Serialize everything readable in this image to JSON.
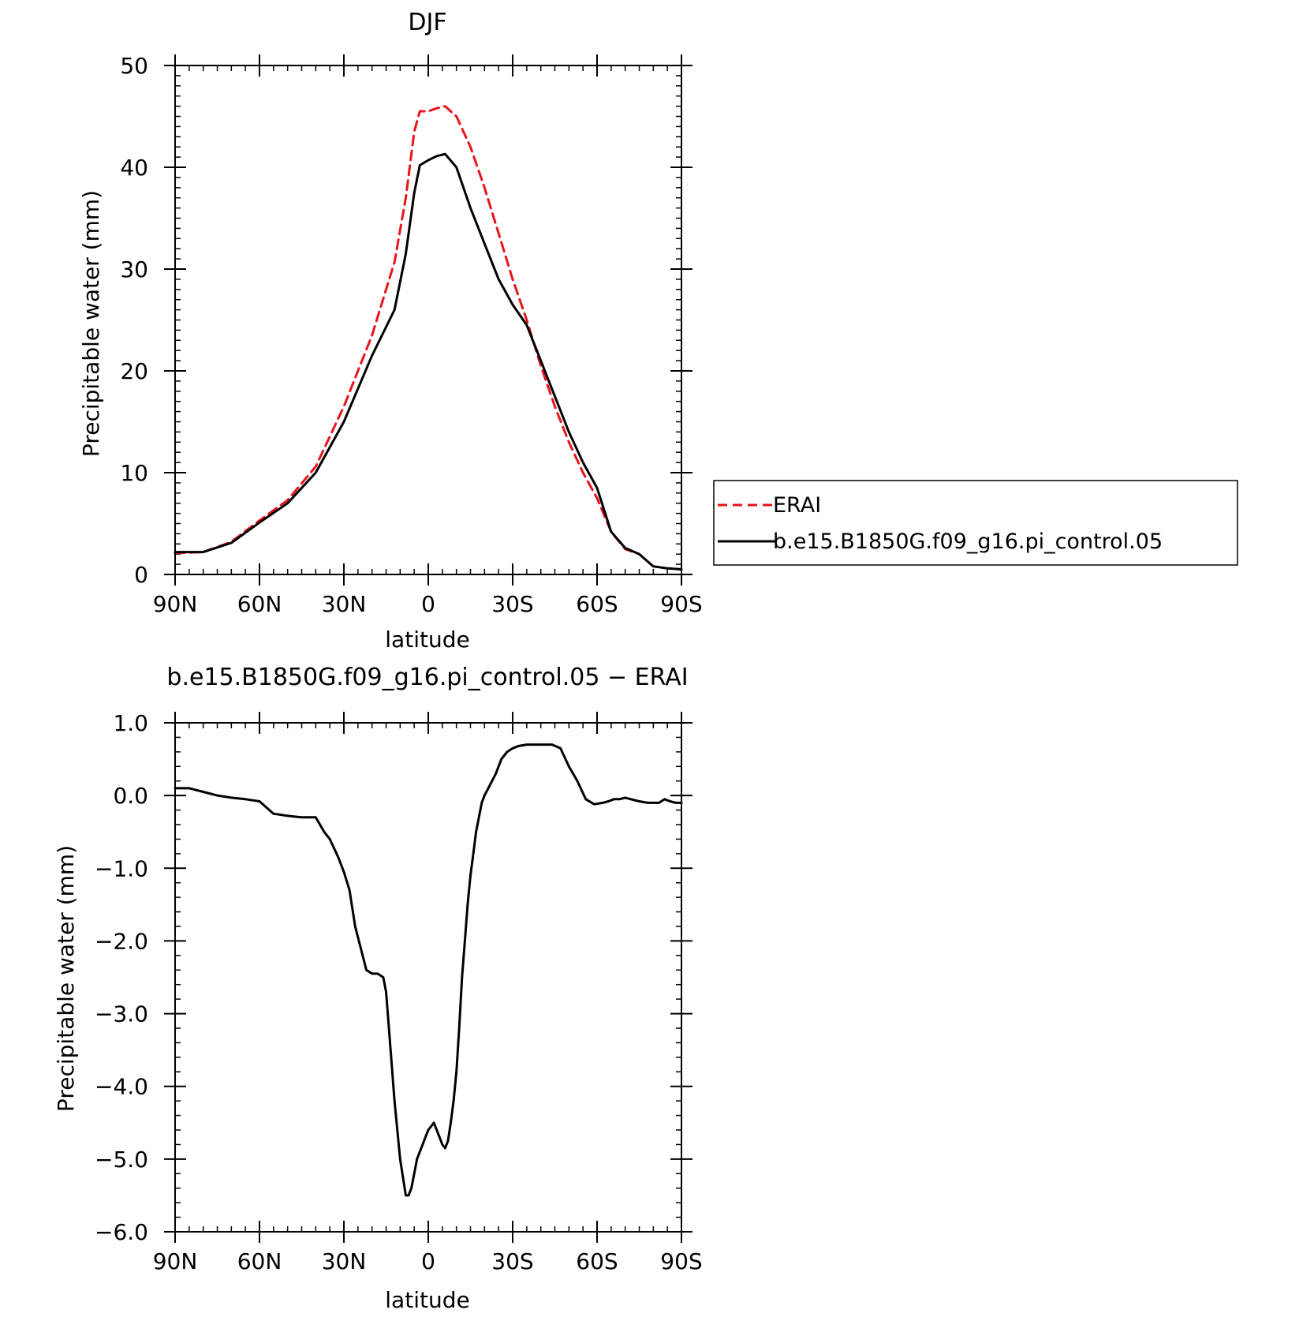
{
  "chart_data": [
    {
      "type": "line",
      "title": "DJF",
      "xlabel": "latitude",
      "ylabel": "Precipitable water (mm)",
      "xlim": [
        90,
        -90
      ],
      "ylim": [
        0,
        50
      ],
      "xticks": [
        {
          "value": 90,
          "label": "90N"
        },
        {
          "value": 60,
          "label": "60N"
        },
        {
          "value": 30,
          "label": "30N"
        },
        {
          "value": 0,
          "label": "0"
        },
        {
          "value": -30,
          "label": "30S"
        },
        {
          "value": -60,
          "label": "60S"
        },
        {
          "value": -90,
          "label": "90S"
        }
      ],
      "yticks": [
        {
          "value": 0,
          "label": "0"
        },
        {
          "value": 10,
          "label": "10"
        },
        {
          "value": 20,
          "label": "20"
        },
        {
          "value": 30,
          "label": "30"
        },
        {
          "value": 40,
          "label": "40"
        },
        {
          "value": 50,
          "label": "50"
        }
      ],
      "grid": false,
      "legend": "right",
      "series": [
        {
          "name": "ERAI",
          "color": "#e8141b",
          "dash": "dashed",
          "x": [
            90,
            80,
            70,
            60,
            50,
            40,
            30,
            20,
            12,
            8,
            5,
            3,
            0,
            -3,
            -6,
            -10,
            -15,
            -20,
            -25,
            -30,
            -35,
            -40,
            -45,
            -50,
            -55,
            -60,
            -65,
            -70,
            -75,
            -80,
            -85,
            -90
          ],
          "y": [
            2.1,
            2.2,
            3.2,
            5.3,
            7.3,
            10.6,
            16.5,
            23.5,
            30.7,
            37.0,
            43.5,
            45.5,
            45.5,
            45.8,
            46.0,
            45.0,
            42.0,
            38.0,
            33.5,
            29.0,
            25.0,
            20.5,
            16.5,
            13.0,
            10.0,
            7.5,
            4.2,
            2.5,
            2.0,
            0.8,
            0.6,
            0.5
          ]
        },
        {
          "name": "b.e15.B1850G.f09_g16.pi_control.05",
          "color": "#000000",
          "dash": "solid",
          "x": [
            90,
            80,
            70,
            60,
            50,
            40,
            30,
            20,
            12,
            8,
            5,
            3,
            0,
            -3,
            -6,
            -10,
            -15,
            -20,
            -25,
            -30,
            -35,
            -40,
            -45,
            -50,
            -55,
            -60,
            -65,
            -70,
            -75,
            -80,
            -85,
            -90
          ],
          "y": [
            2.2,
            2.2,
            3.1,
            5.1,
            7.0,
            10.0,
            15.0,
            21.5,
            26.0,
            31.5,
            37.5,
            40.2,
            40.7,
            41.1,
            41.3,
            40.0,
            36.0,
            32.5,
            29.0,
            26.5,
            24.5,
            21.0,
            17.5,
            14.0,
            11.0,
            8.5,
            4.2,
            2.6,
            2.0,
            0.8,
            0.6,
            0.5
          ]
        }
      ]
    },
    {
      "type": "line",
      "title": "b.e15.B1850G.f09_g16.pi_control.05 − ERAI",
      "xlabel": "latitude",
      "ylabel": "Precipitable water (mm)",
      "xlim": [
        90,
        -90
      ],
      "ylim": [
        -6,
        1
      ],
      "xticks": [
        {
          "value": 90,
          "label": "90N"
        },
        {
          "value": 60,
          "label": "60N"
        },
        {
          "value": 30,
          "label": "30N"
        },
        {
          "value": 0,
          "label": "0"
        },
        {
          "value": -30,
          "label": "30S"
        },
        {
          "value": -60,
          "label": "60S"
        },
        {
          "value": -90,
          "label": "90S"
        }
      ],
      "yticks": [
        {
          "value": 1,
          "label": "1.0"
        },
        {
          "value": 0,
          "label": "0.0"
        },
        {
          "value": -1,
          "label": "−1.0"
        },
        {
          "value": -2,
          "label": "−2.0"
        },
        {
          "value": -3,
          "label": "−3.0"
        },
        {
          "value": -4,
          "label": "−4.0"
        },
        {
          "value": -5,
          "label": "−5.0"
        },
        {
          "value": -6,
          "label": "−6.0"
        }
      ],
      "grid": false,
      "series": [
        {
          "color": "#000000",
          "dash": "solid",
          "x": [
            90,
            85,
            80,
            75,
            70,
            65,
            60,
            55,
            50,
            45,
            40,
            37,
            35,
            32,
            30,
            28,
            26,
            24,
            22,
            20,
            18,
            16,
            15,
            14,
            12,
            10,
            8,
            7,
            6,
            5,
            4,
            3,
            2,
            1,
            0,
            -1,
            -2,
            -3,
            -4,
            -5,
            -6,
            -7,
            -8,
            -9,
            -10,
            -11,
            -12,
            -13,
            -14,
            -15,
            -16,
            -17,
            -18,
            -19,
            -20,
            -22,
            -24,
            -26,
            -28,
            -30,
            -32,
            -35,
            -38,
            -41,
            -44,
            -47,
            -50,
            -53,
            -56,
            -59,
            -62,
            -64,
            -66,
            -68,
            -70,
            -72,
            -75,
            -78,
            -80,
            -82,
            -84,
            -86,
            -88,
            -90
          ],
          "y": [
            0.1,
            0.1,
            0.05,
            0.0,
            -0.03,
            -0.05,
            -0.08,
            -0.25,
            -0.28,
            -0.3,
            -0.3,
            -0.5,
            -0.6,
            -0.85,
            -1.05,
            -1.3,
            -1.8,
            -2.1,
            -2.4,
            -2.45,
            -2.45,
            -2.5,
            -2.7,
            -3.2,
            -4.2,
            -5.0,
            -5.5,
            -5.5,
            -5.4,
            -5.2,
            -5.0,
            -4.9,
            -4.8,
            -4.7,
            -4.6,
            -4.55,
            -4.5,
            -4.6,
            -4.7,
            -4.8,
            -4.85,
            -4.75,
            -4.5,
            -4.2,
            -3.8,
            -3.2,
            -2.5,
            -2.0,
            -1.5,
            -1.1,
            -0.8,
            -0.5,
            -0.3,
            -0.1,
            0.0,
            0.15,
            0.3,
            0.5,
            0.6,
            0.65,
            0.68,
            0.7,
            0.7,
            0.7,
            0.7,
            0.65,
            0.4,
            0.2,
            -0.05,
            -0.12,
            -0.1,
            -0.08,
            -0.05,
            -0.05,
            -0.03,
            -0.05,
            -0.08,
            -0.1,
            -0.1,
            -0.1,
            -0.05,
            -0.08,
            -0.1,
            -0.1
          ]
        }
      ]
    }
  ]
}
